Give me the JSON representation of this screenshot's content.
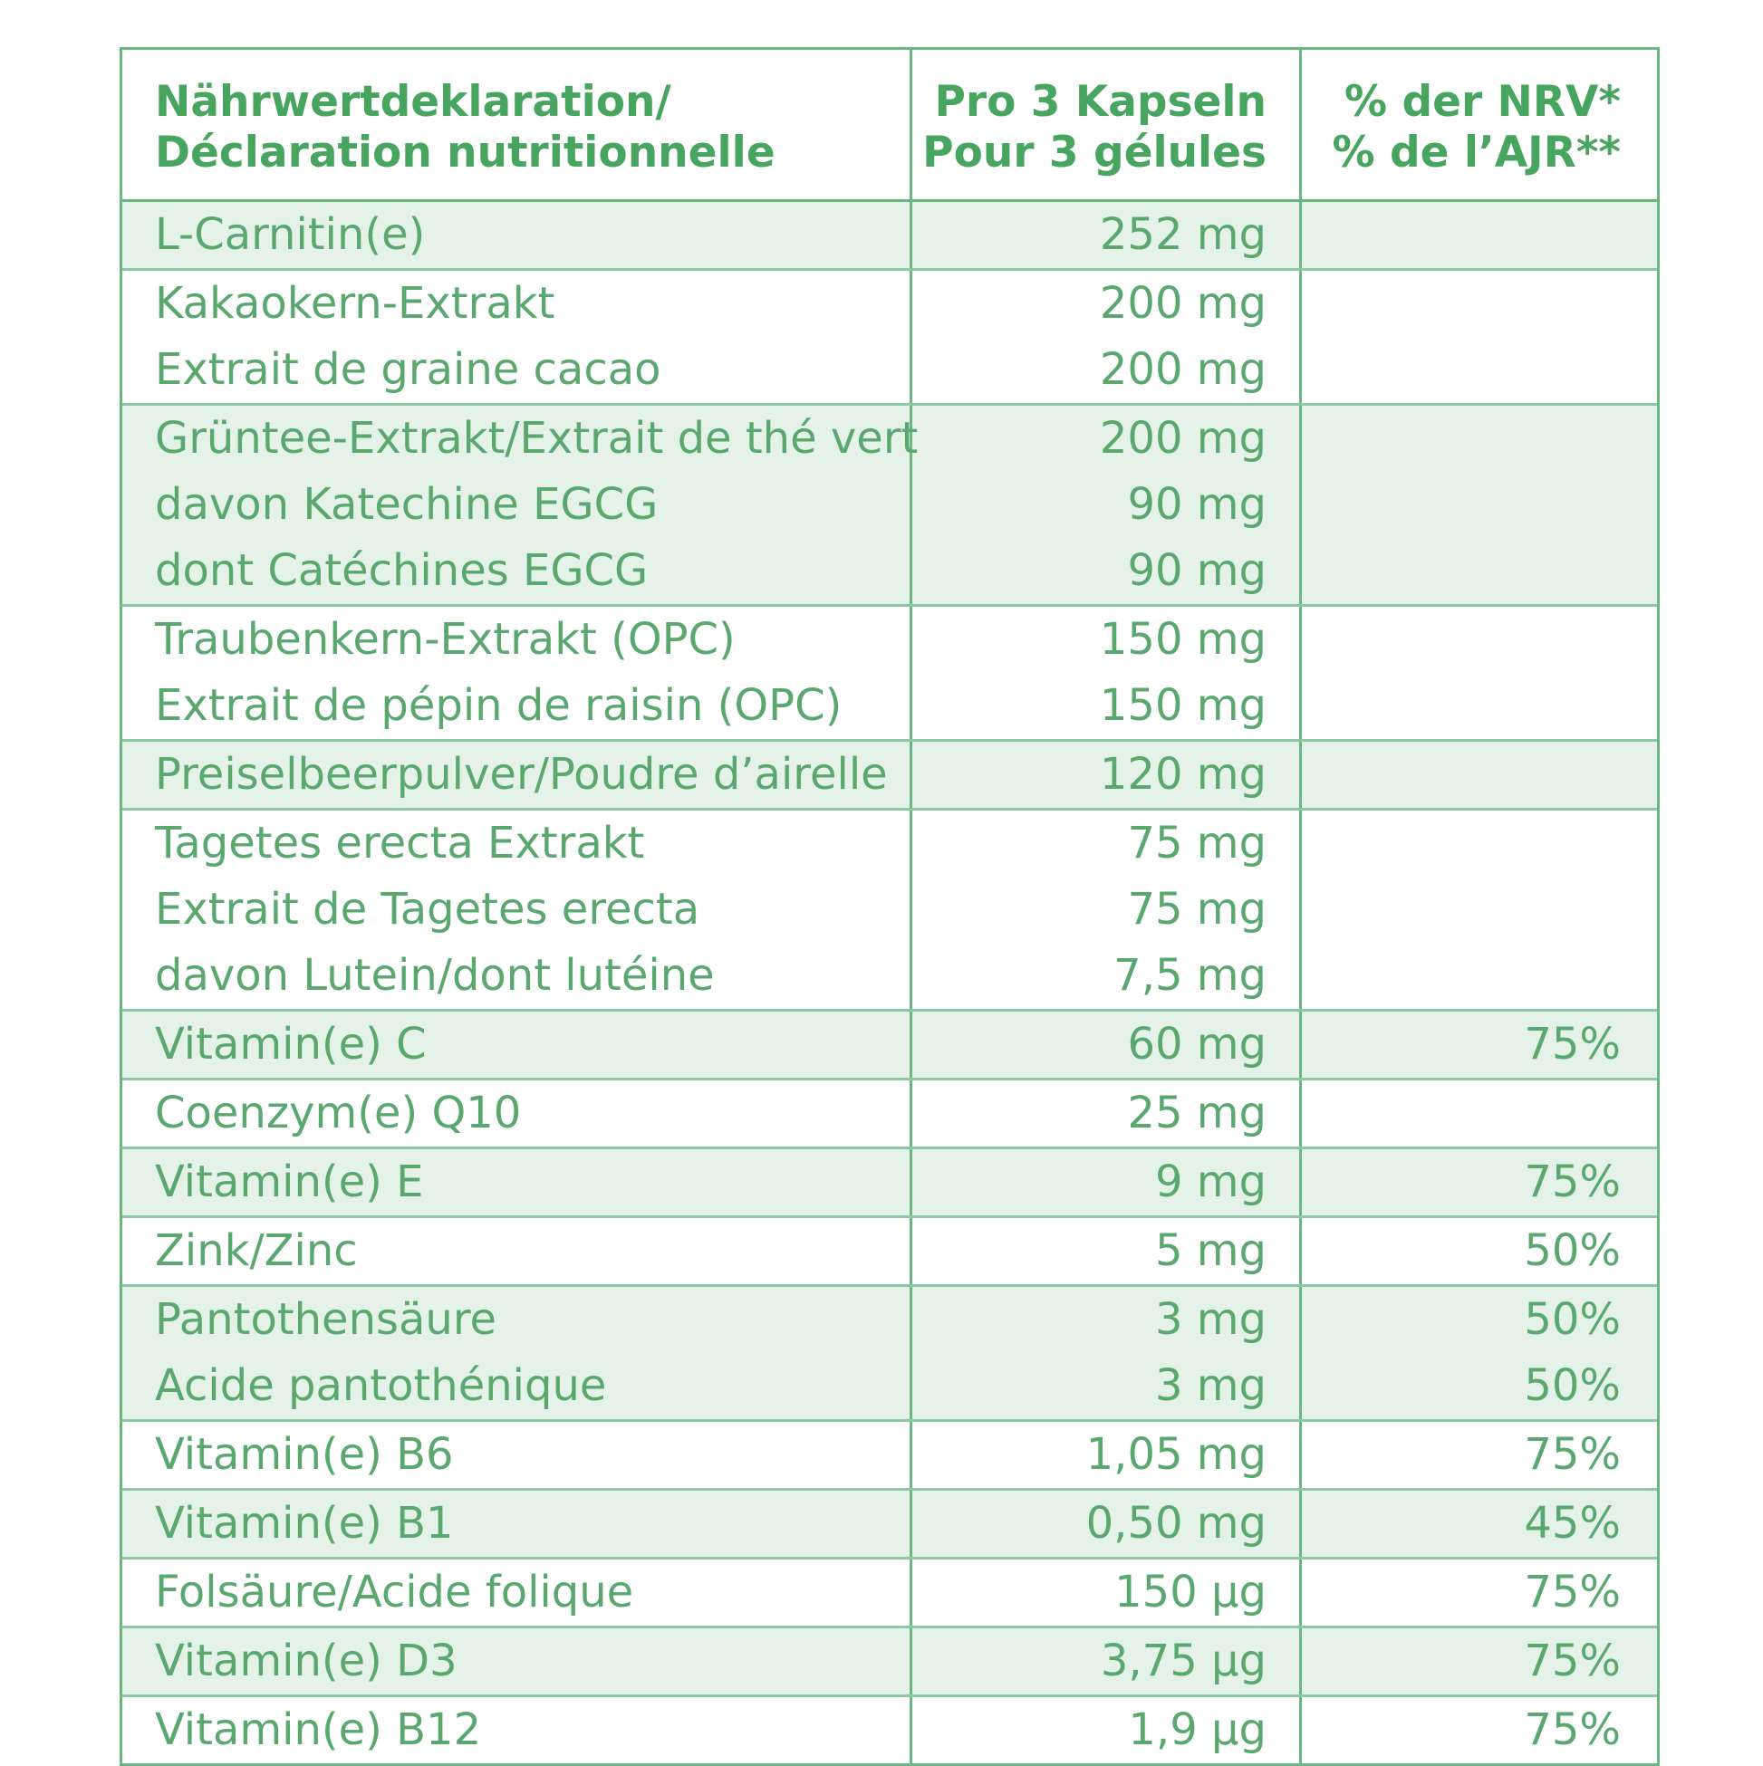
{
  "header": {
    "name_de": "Nährwertdeklaration/",
    "name_fr": "Déclaration nutritionnelle",
    "amount_de": "Pro 3 Kapseln",
    "amount_fr": "Pour 3 gélules",
    "nrv_de": "% der NRV*",
    "nrv_fr": "% de l’AJR**"
  },
  "groups": [
    {
      "shaded": true,
      "lines": [
        {
          "name": "L-Carnitin(e)",
          "amount": "252 mg",
          "nrv": ""
        }
      ]
    },
    {
      "shaded": false,
      "lines": [
        {
          "name": "Kakaokern-Extrakt",
          "amount": "200 mg",
          "nrv": ""
        },
        {
          "name": "Extrait de graine cacao",
          "amount": "200 mg",
          "nrv": ""
        }
      ]
    },
    {
      "shaded": true,
      "lines": [
        {
          "name": "Grüntee-Extrakt/Extrait de thé vert",
          "amount": "200 mg",
          "nrv": ""
        },
        {
          "name": "davon Katechine EGCG",
          "amount": "90 mg",
          "nrv": ""
        },
        {
          "name": "dont Catéchines EGCG",
          "amount": "90 mg",
          "nrv": ""
        }
      ]
    },
    {
      "shaded": false,
      "lines": [
        {
          "name": "Traubenkern-Extrakt (OPC)",
          "amount": "150 mg",
          "nrv": ""
        },
        {
          "name": "Extrait de pépin de raisin (OPC)",
          "amount": "150 mg",
          "nrv": ""
        }
      ]
    },
    {
      "shaded": true,
      "lines": [
        {
          "name": "Preiselbeerpulver/Poudre d’airelle",
          "amount": "120 mg",
          "nrv": ""
        }
      ]
    },
    {
      "shaded": false,
      "lines": [
        {
          "name": "Tagetes erecta Extrakt",
          "amount": "75 mg",
          "nrv": ""
        },
        {
          "name": "Extrait de Tagetes erecta",
          "amount": "75 mg",
          "nrv": ""
        },
        {
          "name": "davon Lutein/dont lutéine",
          "amount": "7,5 mg",
          "nrv": ""
        }
      ]
    },
    {
      "shaded": true,
      "lines": [
        {
          "name": "Vitamin(e) C",
          "amount": "60 mg",
          "nrv": "75%"
        }
      ]
    },
    {
      "shaded": false,
      "lines": [
        {
          "name": "Coenzym(e) Q10",
          "amount": "25 mg",
          "nrv": ""
        }
      ]
    },
    {
      "shaded": true,
      "lines": [
        {
          "name": "Vitamin(e) E",
          "amount": "9 mg",
          "nrv": "75%"
        }
      ]
    },
    {
      "shaded": false,
      "lines": [
        {
          "name": "Zink/Zinc",
          "amount": "5 mg",
          "nrv": "50%"
        }
      ]
    },
    {
      "shaded": true,
      "lines": [
        {
          "name": "Pantothensäure",
          "amount": "3 mg",
          "nrv": "50%"
        },
        {
          "name": "Acide pantothénique",
          "amount": "3 mg",
          "nrv": "50%"
        }
      ]
    },
    {
      "shaded": false,
      "lines": [
        {
          "name": "Vitamin(e) B6",
          "amount": "1,05 mg",
          "nrv": "75%"
        }
      ]
    },
    {
      "shaded": true,
      "lines": [
        {
          "name": "Vitamin(e) B1",
          "amount": "0,50 mg",
          "nrv": "45%"
        }
      ]
    },
    {
      "shaded": false,
      "lines": [
        {
          "name": "Folsäure/Acide folique",
          "amount": "150 µg",
          "nrv": "75%"
        }
      ]
    },
    {
      "shaded": true,
      "lines": [
        {
          "name": "Vitamin(e) D3",
          "amount": "3,75 µg",
          "nrv": "75%"
        }
      ]
    },
    {
      "shaded": false,
      "lines": [
        {
          "name": "Vitamin(e) B12",
          "amount": "1,9 µg",
          "nrv": "75%"
        }
      ]
    }
  ]
}
